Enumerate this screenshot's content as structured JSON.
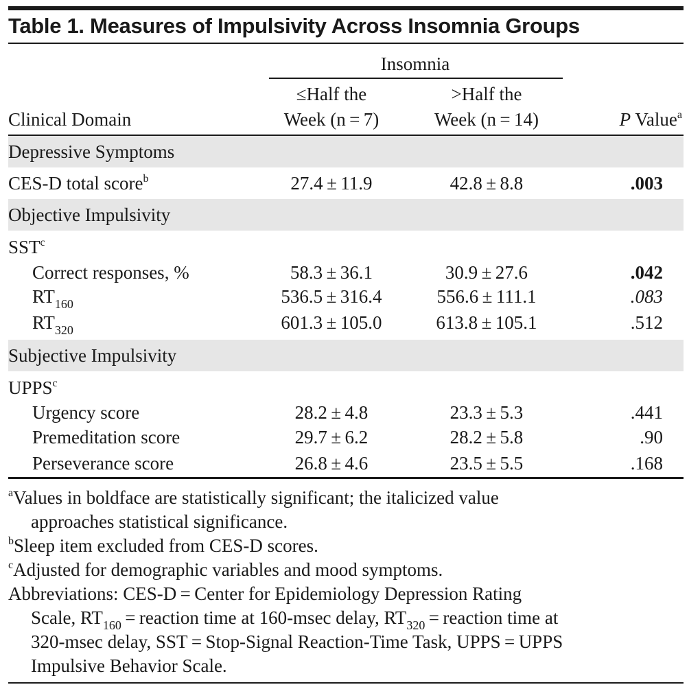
{
  "title": "Table 1. Measures of Impulsivity Across Insomnia Groups",
  "header": {
    "group_label": "Insomnia",
    "col0": "Clinical Domain",
    "col1_line1": "≤Half the",
    "col1_line2": "Week (n = 7)",
    "col2_line1": ">Half the",
    "col2_line2": "Week (n = 14)",
    "col3_italic": "P",
    "col3_rest": " Value",
    "col3_fn": "a"
  },
  "rows": [
    {
      "type": "section",
      "label": "Depressive Symptoms"
    },
    {
      "type": "data",
      "label": "CES-D total score",
      "fn": "b",
      "v1": "27.4 ± 11.9",
      "v2": "42.8 ± 8.8",
      "p": ".003",
      "p_style": "bold"
    },
    {
      "type": "section",
      "label": "Objective Impulsivity"
    },
    {
      "type": "sub",
      "label": "SST",
      "fn": "c"
    },
    {
      "type": "data",
      "label": "Correct responses, %",
      "v1": "58.3 ± 36.1",
      "v2": "30.9 ± 27.6",
      "p": ".042",
      "p_style": "bold"
    },
    {
      "type": "data",
      "label": "RT",
      "sub": "160",
      "v1": "536.5 ± 316.4",
      "v2": "556.6 ± 111.1",
      "p": ".083",
      "p_style": "italic"
    },
    {
      "type": "data",
      "label": "RT",
      "sub": "320",
      "v1": "601.3 ± 105.0",
      "v2": "613.8 ± 105.1",
      "p": ".512",
      "p_style": "normal"
    },
    {
      "type": "section",
      "label": "Subjective Impulsivity"
    },
    {
      "type": "sub",
      "label": "UPPS",
      "fn": "c"
    },
    {
      "type": "data",
      "label": "Urgency score",
      "v1": "28.2 ± 4.8",
      "v2": "23.3 ± 5.3",
      "p": ".441",
      "p_style": "normal"
    },
    {
      "type": "data",
      "label": "Premeditation score",
      "v1": "29.7 ± 6.2",
      "v2": "28.2 ± 5.8",
      "p": ".90",
      "p_style": "normal"
    },
    {
      "type": "data",
      "label": "Perseverance score",
      "v1": "26.8 ± 4.6",
      "v2": "23.5 ± 5.5",
      "p": ".168",
      "p_style": "normal"
    }
  ],
  "footnotes": {
    "a_mark": "a",
    "a_line1": "Values in boldface are statistically significant; the italicized value",
    "a_line2": "approaches statistical significance.",
    "b_mark": "b",
    "b_text": "Sleep item excluded from CES-D scores.",
    "c_mark": "c",
    "c_text": "Adjusted for demographic variables and mood symptoms.",
    "abbr_line1": "Abbreviations: CES-D = Center for Epidemiology Depression Rating",
    "abbr_line2_a": "Scale, RT",
    "abbr_line2_sub1": "160",
    "abbr_line2_b": " = reaction time at 160-msec delay, RT",
    "abbr_line2_sub2": "320",
    "abbr_line2_c": " = reaction time at",
    "abbr_line3": "320-msec delay, SST = Stop-Signal Reaction-Time Task, UPPS = UPPS",
    "abbr_line4": "Impulsive Behavior Scale."
  }
}
